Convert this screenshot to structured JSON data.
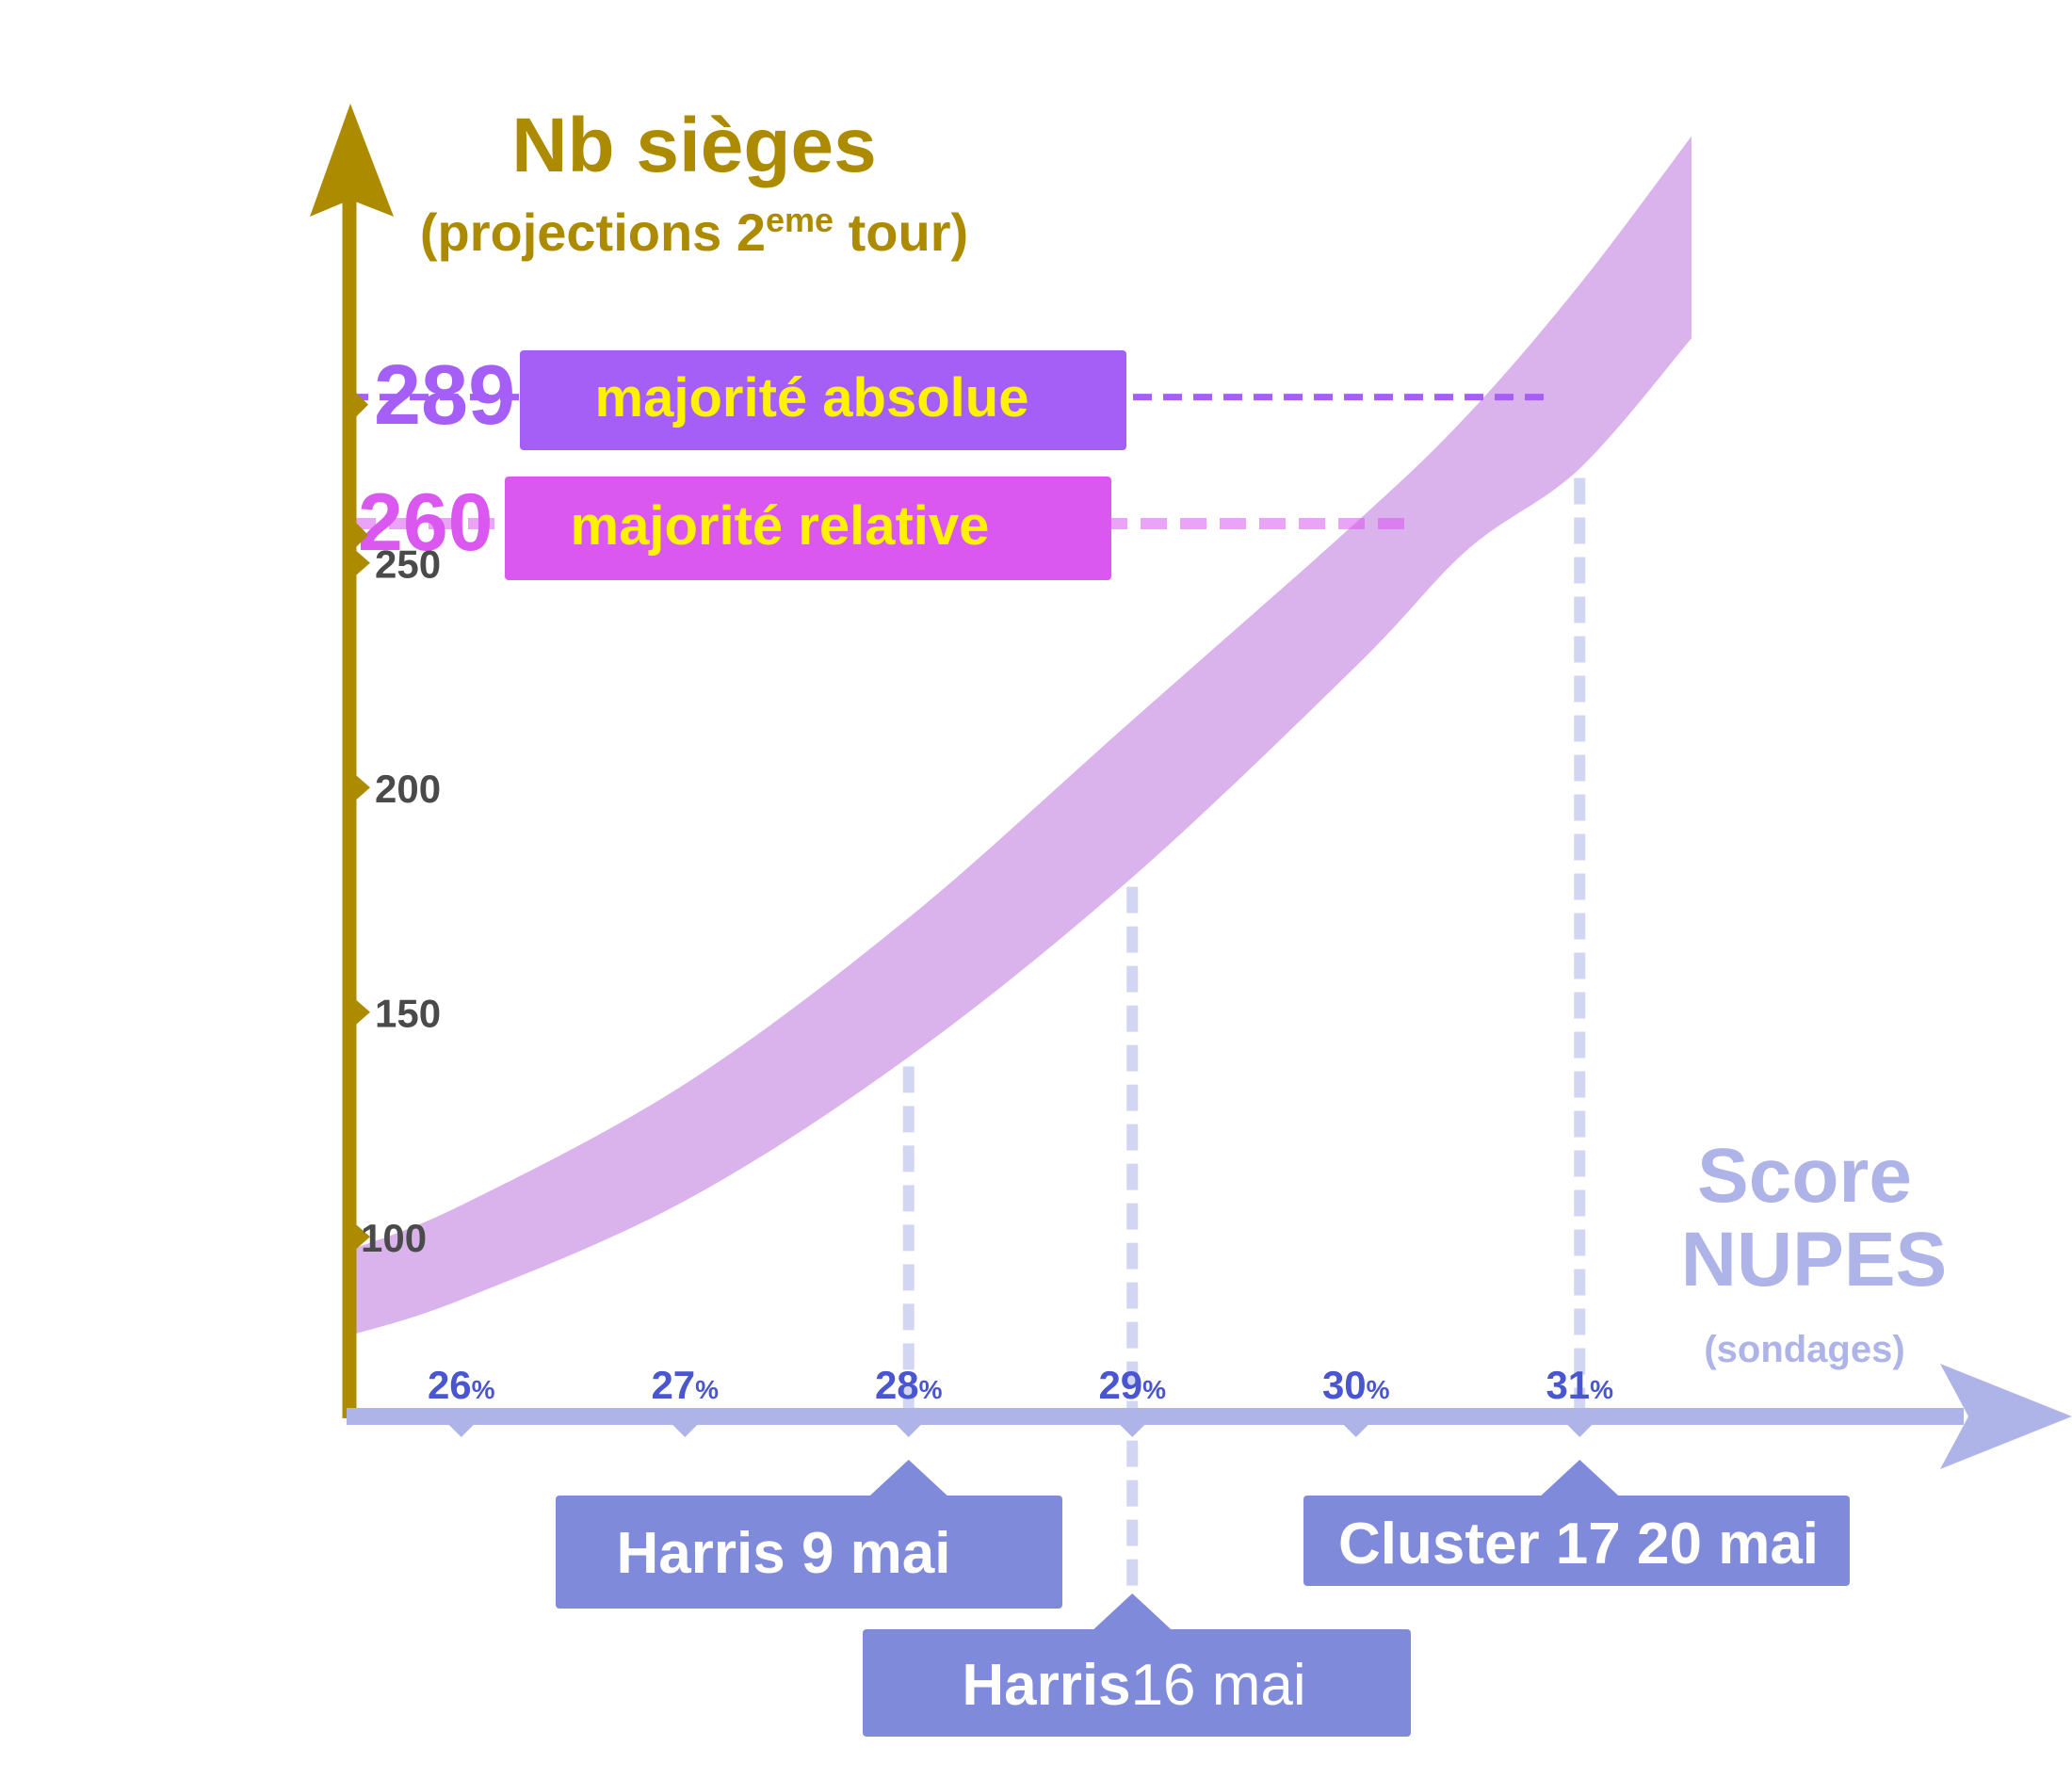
{
  "chart_data": {
    "type": "area",
    "colors": {
      "y_axis": "#AD8B00",
      "x_axis": "#AFB4E8",
      "band": "#DAB3EC",
      "absolute": "#A55FF7",
      "relative": "#DA58F0",
      "badge_text": "#FFF200",
      "ytick": "#4A4A4A",
      "xtick": "#4A56CF",
      "poll_box": "#7F8ADB",
      "poll_line": "#D3D6F3",
      "xlabel": "#AFB4E8"
    },
    "y_title": {
      "line1": "Nb sièges",
      "line2_pre": "(projections 2",
      "line2_sup": "eme",
      "line2_post": " tour)"
    },
    "x_title": {
      "line1": "Score",
      "line2": "NUPES",
      "line3": "(sondages)"
    },
    "y_ticks": [
      {
        "value": 100,
        "label": "100"
      },
      {
        "value": 150,
        "label": "150"
      },
      {
        "value": 200,
        "label": "200"
      },
      {
        "value": 250,
        "label": "250"
      }
    ],
    "x_ticks": [
      {
        "value": 26,
        "num": "26",
        "pct": "%"
      },
      {
        "value": 27,
        "num": "27",
        "pct": "%"
      },
      {
        "value": 28,
        "num": "28",
        "pct": "%"
      },
      {
        "value": 29,
        "num": "29",
        "pct": "%"
      },
      {
        "value": 30,
        "num": "30",
        "pct": "%"
      },
      {
        "value": 31,
        "num": "31",
        "pct": "%"
      }
    ],
    "thresholds": [
      {
        "id": "absolute",
        "value": 289,
        "number": "289",
        "label": "majorité absolue"
      },
      {
        "id": "relative",
        "value": 260,
        "number": "260",
        "label": "majorité relative"
      }
    ],
    "band": {
      "x": [
        25.5,
        26,
        27,
        28,
        29,
        30,
        30.5,
        31,
        31.5
      ],
      "low": [
        78,
        86,
        108,
        140,
        180,
        227,
        253,
        271,
        300
      ],
      "high": [
        97,
        107,
        134,
        171,
        215,
        259,
        283,
        312,
        345
      ]
    },
    "polls": [
      {
        "x": 28,
        "name": "Harris",
        "date": "9 mai",
        "row": 1
      },
      {
        "x": 29,
        "name": "Harris",
        "date": "16 mai",
        "row": 2
      },
      {
        "x": 31,
        "name": "Cluster 17",
        "date": "20 mai",
        "row": 1
      }
    ]
  }
}
